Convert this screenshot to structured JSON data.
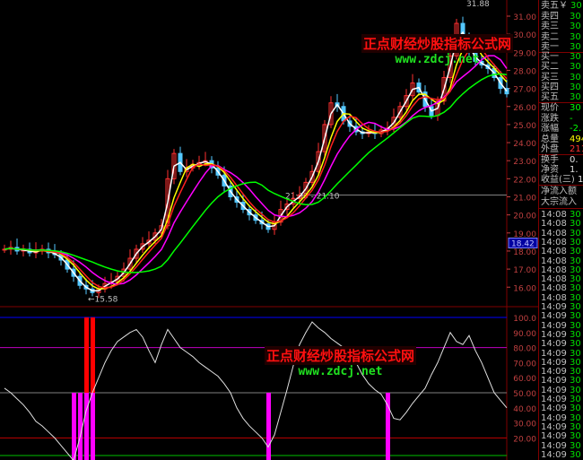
{
  "chart_data": [
    {
      "type": "candlestick",
      "yticks": [
        "31.00",
        "30.00",
        "29.00",
        "28.00",
        "27.00",
        "26.00",
        "25.00",
        "24.00",
        "23.00",
        "22.00",
        "21.00",
        "20.00",
        "19.00",
        "18.00",
        "17.00",
        "16.00"
      ],
      "ylim": [
        15.0,
        31.9
      ],
      "close": [
        18.1,
        18.2,
        18.0,
        18.1,
        17.9,
        18.0,
        18.1,
        17.9,
        17.8,
        17.5,
        17.0,
        16.6,
        16.1,
        15.9,
        15.7,
        15.9,
        16.2,
        16.3,
        16.6,
        17.0,
        17.6,
        18.1,
        18.4,
        18.6,
        19.0,
        19.4,
        22.0,
        23.4,
        22.4,
        22.6,
        22.8,
        22.9,
        23.0,
        22.6,
        22.2,
        21.6,
        21.0,
        20.7,
        20.3,
        20.0,
        19.7,
        19.5,
        19.2,
        19.6,
        20.3,
        20.6,
        20.9,
        21.1,
        21.8,
        22.4,
        23.5,
        25.0,
        26.2,
        26.0,
        25.2,
        24.9,
        24.6,
        24.5,
        24.6,
        24.5,
        24.7,
        24.8,
        25.4,
        26.0,
        26.6,
        27.3,
        26.8,
        26.0,
        25.5,
        26.3,
        27.6,
        28.8,
        30.6,
        29.6,
        29.0,
        28.5,
        28.3,
        28.1,
        27.6,
        27.0,
        26.7
      ],
      "current_price_label": "18.42",
      "annotations": {
        "low": "15.58",
        "high": "31.88",
        "level_a": "21.00",
        "level_b": "21.10",
        "level_sep": "-"
      },
      "grid": true
    },
    {
      "type": "line",
      "yticks": [
        "100.0",
        "90.00",
        "80.00",
        "70.00",
        "60.00",
        "50.00",
        "40.00",
        "30.00",
        "20.00"
      ],
      "ylim": [
        0,
        100
      ],
      "values": [
        53,
        50,
        46,
        42,
        37,
        31,
        28,
        24,
        20,
        15,
        10,
        5,
        20,
        38,
        50,
        60,
        70,
        78,
        84,
        87,
        90,
        92,
        87,
        78,
        70,
        82,
        92,
        86,
        80,
        77,
        74,
        70,
        67,
        64,
        61,
        56,
        50,
        40,
        33,
        28,
        24,
        20,
        14,
        22,
        37,
        52,
        68,
        82,
        90,
        97,
        93,
        90,
        86,
        83,
        80,
        75,
        70,
        62,
        56,
        52,
        49,
        42,
        33,
        32,
        37,
        43,
        48,
        53,
        62,
        70,
        80,
        90,
        84,
        82,
        88,
        78,
        70,
        60,
        50,
        45,
        40
      ],
      "reference_lines": [
        {
          "value": 100,
          "color": "#0000ff"
        },
        {
          "value": 80,
          "color": "#c000c0"
        },
        {
          "value": 50,
          "color": "#808080"
        },
        {
          "value": 20,
          "color": "#c00000"
        },
        {
          "value": 0,
          "color": "#00c000"
        }
      ],
      "signal_bars_magenta": [
        11,
        12,
        13,
        14,
        42,
        61
      ],
      "signal_bars_red": [
        13,
        14
      ]
    }
  ],
  "colors": {
    "up": "#ff3030",
    "down": "#54c8ff",
    "ma_white": "#ffffff",
    "ma_yellow": "#ffff00",
    "ma_magenta": "#ff00ff",
    "ma_red": "#ff2020",
    "ma_green": "#00ff00",
    "axis": "#c04040",
    "grid": "#600000"
  },
  "watermark": {
    "title": "正点财经炒股指标公式网",
    "url": "www.zdcj.net"
  },
  "quote_panel": {
    "sell": [
      {
        "label": "卖五￥",
        "value": "30"
      },
      {
        "label": "卖四",
        "value": "30"
      },
      {
        "label": "卖三",
        "value": "30"
      },
      {
        "label": "卖二",
        "value": "30"
      },
      {
        "label": "卖一",
        "value": "30"
      }
    ],
    "buy": [
      {
        "label": "买一",
        "value": "30"
      },
      {
        "label": "买二",
        "value": "30"
      },
      {
        "label": "买三",
        "value": "30"
      },
      {
        "label": "买四",
        "value": "30"
      },
      {
        "label": "买五",
        "value": "30"
      }
    ],
    "stats1": [
      {
        "label": "现价",
        "value": "30",
        "color": "#00ff00"
      },
      {
        "label": "涨跌",
        "value": "-",
        "color": "#00ff00"
      },
      {
        "label": "涨幅",
        "value": "-2.",
        "color": "#00ff00"
      },
      {
        "label": "总量",
        "value": "494",
        "color": "#ffff00"
      },
      {
        "label": "外盘",
        "value": "211",
        "color": "#ff3030"
      }
    ],
    "stats2": [
      {
        "label": "换手",
        "value": "0."
      },
      {
        "label": "净资",
        "value": "1."
      },
      {
        "label": "收益(三)",
        "value": "1."
      }
    ],
    "flow": [
      "净流入额",
      "大宗流入"
    ],
    "ticks": [
      "14:08",
      "14:08",
      "14:08",
      "14:08",
      "14:08",
      "14:08",
      "14:08",
      "14:08",
      "14:08",
      "14:08",
      "14:09",
      "14:09",
      "14:09",
      "14:09",
      "14:09",
      "14:09",
      "14:09",
      "14:09",
      "14:09",
      "14:09",
      "14:09",
      "14:09",
      "14:09",
      "14:09",
      "14:09",
      "14:09",
      "14:09"
    ],
    "tick_value": "30"
  }
}
